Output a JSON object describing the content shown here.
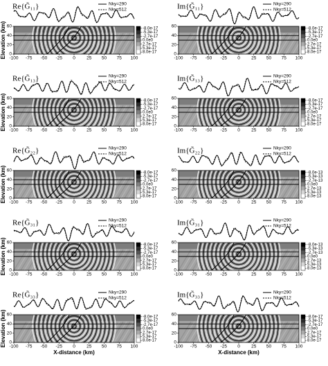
{
  "chart_data": [
    {
      "type": "wavefield",
      "title": "Re{G̃₁₁}",
      "series": [
        {
          "name": "Nky=290",
          "dash": "solid",
          "color": "#000000"
        },
        {
          "name": "Nky=512",
          "dash": "dashed",
          "color": "#000000"
        }
      ],
      "ylabel": "Elevation (km)",
      "xlim": [
        -100,
        100
      ],
      "xticks": [
        -100,
        -75,
        -50,
        -25,
        0,
        25,
        50,
        75,
        100
      ],
      "ylim": [
        0,
        60
      ],
      "yticks": [
        0,
        20,
        40,
        60
      ],
      "clim": [
        -8e-17,
        8e-17
      ],
      "cticks": [
        {
          "value": -8e-17,
          "label": "-8.0e-17"
        },
        {
          "value": -5.3e-17,
          "label": "-5.3e-17"
        },
        {
          "value": -2.7e-17,
          "label": "-2.7e-17"
        },
        {
          "value": 0,
          "label": "0.0e0"
        },
        {
          "value": 2.7e-17,
          "label": "2.7e-17"
        },
        {
          "value": 5.3e-17,
          "label": "5.3e-17"
        },
        {
          "value": 8e-17,
          "label": "8.0e-17"
        }
      ]
    },
    {
      "type": "wavefield",
      "title": "Im{G̃₁₁}",
      "series": [
        {
          "name": "Nky=290",
          "dash": "solid",
          "color": "#000000"
        },
        {
          "name": "Nky=512",
          "dash": "dashed",
          "color": "#000000"
        }
      ],
      "xlim": [
        -100,
        100
      ],
      "xticks": [
        -100,
        -75,
        -50,
        -25,
        0,
        25,
        50,
        75,
        100
      ],
      "ylim": [
        0,
        60
      ],
      "yticks": [
        0,
        20,
        40,
        60
      ],
      "clim": [
        -8e-17,
        8e-17
      ],
      "cticks": [
        {
          "value": -8e-17,
          "label": "-8.0e-17"
        },
        {
          "value": -5.3e-17,
          "label": "-5.3e-17"
        },
        {
          "value": -2.7e-17,
          "label": "-2.7e-17"
        },
        {
          "value": 0,
          "label": "0.0e0"
        },
        {
          "value": 2.7e-17,
          "label": "2.7e-17"
        },
        {
          "value": 5.3e-17,
          "label": "5.3e-17"
        },
        {
          "value": 8e-17,
          "label": "8.0e-17"
        }
      ]
    },
    {
      "type": "wavefield",
      "title": "Re{G̃₁₃}",
      "series": [
        {
          "name": "Nky=290",
          "dash": "solid",
          "color": "#000000"
        },
        {
          "name": "Nky=512",
          "dash": "dashed",
          "color": "#000000"
        }
      ],
      "ylabel": "Elevation (km)",
      "xlim": [
        -100,
        100
      ],
      "xticks": [
        -100,
        -75,
        -50,
        -25,
        0,
        25,
        50,
        75,
        100
      ],
      "ylim": [
        0,
        60
      ],
      "yticks": [
        0,
        20,
        40,
        60
      ],
      "clim": [
        -8e-17,
        8e-17
      ],
      "cticks": [
        {
          "value": -8e-17,
          "label": "-8.0e-17"
        },
        {
          "value": -5.3e-17,
          "label": "-5.3e-17"
        },
        {
          "value": -2.7e-17,
          "label": "-2.7e-17"
        },
        {
          "value": 0,
          "label": "0.0e0"
        },
        {
          "value": 2.7e-17,
          "label": "2.7e-17"
        },
        {
          "value": 5.3e-17,
          "label": "5.3e-17"
        },
        {
          "value": 8e-17,
          "label": "8.0e-17"
        }
      ]
    },
    {
      "type": "wavefield",
      "title": "Im{G̃₁₃}",
      "series": [
        {
          "name": "Nky=290",
          "dash": "solid",
          "color": "#000000"
        },
        {
          "name": "Nky=512",
          "dash": "dashed",
          "color": "#000000"
        }
      ],
      "xlim": [
        -100,
        100
      ],
      "xticks": [
        -100,
        -75,
        -50,
        -25,
        0,
        25,
        50,
        75,
        100
      ],
      "ylim": [
        0,
        60
      ],
      "yticks": [
        0,
        20,
        40,
        60
      ],
      "clim": [
        -8e-17,
        8e-17
      ],
      "cticks": [
        {
          "value": -8e-17,
          "label": "-8.0e-17"
        },
        {
          "value": -5.3e-17,
          "label": "-5.3e-17"
        },
        {
          "value": -2.7e-17,
          "label": "-2.7e-17"
        },
        {
          "value": 0,
          "label": "0.0e0"
        },
        {
          "value": 2.7e-17,
          "label": "2.7e-17"
        },
        {
          "value": 5.3e-17,
          "label": "5.3e-17"
        },
        {
          "value": 8e-17,
          "label": "8.0e-17"
        }
      ]
    },
    {
      "type": "wavefield",
      "title": "Re{G̃₂₂}",
      "series": [
        {
          "name": "Nky=290",
          "dash": "solid",
          "color": "#000000"
        },
        {
          "name": "Nky=512",
          "dash": "dashed",
          "color": "#000000"
        }
      ],
      "ylabel": "Elevation (km)",
      "xlim": [
        -100,
        100
      ],
      "xticks": [
        -100,
        -75,
        -50,
        -25,
        0,
        25,
        50,
        75,
        100
      ],
      "ylim": [
        0,
        60
      ],
      "yticks": [
        0,
        20,
        40,
        60
      ],
      "clim": [
        -8e-17,
        8e-17
      ],
      "cticks": [
        {
          "value": -8e-17,
          "label": "-8.0e-17"
        },
        {
          "value": -5.3e-17,
          "label": "-5.3e-17"
        },
        {
          "value": -2.7e-17,
          "label": "-2.7e-17"
        },
        {
          "value": 0,
          "label": "0.0e0"
        },
        {
          "value": 2.7e-17,
          "label": "2.7e-17"
        },
        {
          "value": 5.3e-17,
          "label": "5.3e-17"
        },
        {
          "value": 8e-17,
          "label": "8.0e-17"
        }
      ]
    },
    {
      "type": "wavefield",
      "title": "Im{G̃₂₂}",
      "series": [
        {
          "name": "Nky=290",
          "dash": "solid",
          "color": "#000000"
        },
        {
          "name": "Nky=512",
          "dash": "dashed",
          "color": "#000000"
        }
      ],
      "xlim": [
        -100,
        100
      ],
      "xticks": [
        -100,
        -75,
        -50,
        -25,
        0,
        25,
        50,
        75,
        100
      ],
      "ylim": [
        0,
        60
      ],
      "yticks": [
        0,
        20,
        40,
        60
      ],
      "clim": [
        -8e-13,
        8e-13
      ],
      "cticks": [
        {
          "value": -8e-13,
          "label": "-8.0e-13"
        },
        {
          "value": -5.3e-13,
          "label": "-5.3e-13"
        },
        {
          "value": -2.7e-13,
          "label": "-2.7e-13"
        },
        {
          "value": 0,
          "label": "0.0e0"
        },
        {
          "value": 2.7e-13,
          "label": "2.7e-13"
        },
        {
          "value": 5.3e-13,
          "label": "5.3e-13"
        },
        {
          "value": 8e-13,
          "label": "8.0e-13"
        }
      ]
    },
    {
      "type": "wavefield",
      "title": "Re{G̃₃₁}",
      "series": [
        {
          "name": "Nky=290",
          "dash": "solid",
          "color": "#000000"
        },
        {
          "name": "Nky=512",
          "dash": "dashed",
          "color": "#000000"
        }
      ],
      "ylabel": "Elevation (km)",
      "xlim": [
        -100,
        100
      ],
      "xticks": [
        -100,
        -75,
        -50,
        -25,
        0,
        25,
        50,
        75,
        100
      ],
      "ylim": [
        0,
        60
      ],
      "yticks": [
        0,
        20,
        40,
        60
      ],
      "clim": [
        -8e-17,
        8e-17
      ],
      "cticks": [
        {
          "value": -8e-17,
          "label": "-8.0e-17"
        },
        {
          "value": -5.3e-17,
          "label": "-5.3e-17"
        },
        {
          "value": -2.7e-17,
          "label": "-2.7e-17"
        },
        {
          "value": 0,
          "label": "0.0e0"
        },
        {
          "value": 2.7e-17,
          "label": "2.7e-17"
        },
        {
          "value": 5.3e-17,
          "label": "5.3e-17"
        },
        {
          "value": 8e-17,
          "label": "8.0e-17"
        }
      ]
    },
    {
      "type": "wavefield",
      "title": "Im{G̃₃₁}",
      "series": [
        {
          "name": "Nky=290",
          "dash": "solid",
          "color": "#000000"
        },
        {
          "name": "Nky=512",
          "dash": "dashed",
          "color": "#000000"
        }
      ],
      "xlim": [
        -100,
        100
      ],
      "xticks": [
        -100,
        -75,
        -50,
        -25,
        0,
        25,
        50,
        75,
        100
      ],
      "ylim": [
        0,
        60
      ],
      "yticks": [
        0,
        20,
        40,
        60
      ],
      "clim": [
        -8e-13,
        8e-13
      ],
      "cticks": [
        {
          "value": -8e-13,
          "label": "-8.0e-13"
        },
        {
          "value": -5.3e-13,
          "label": "-5.3e-13"
        },
        {
          "value": -2.7e-13,
          "label": "-2.7e-13"
        },
        {
          "value": 0,
          "label": "0.0e0"
        },
        {
          "value": 2.7e-13,
          "label": "2.7e-13"
        },
        {
          "value": 5.3e-13,
          "label": "5.3e-13"
        },
        {
          "value": 8e-13,
          "label": "8.0e-13"
        }
      ]
    },
    {
      "type": "wavefield",
      "title": "Re{G̃₃₃}",
      "series": [
        {
          "name": "Nky=290",
          "dash": "solid",
          "color": "#000000"
        },
        {
          "name": "Nky=512",
          "dash": "dashed",
          "color": "#000000"
        }
      ],
      "ylabel": "Elevation (km)",
      "xlabel": "X-distance (km)",
      "xlim": [
        -100,
        100
      ],
      "xticks": [
        -100,
        -75,
        -50,
        -25,
        0,
        25,
        50,
        75,
        100
      ],
      "ylim": [
        0,
        60
      ],
      "yticks": [
        0,
        20,
        40,
        60
      ],
      "clim": [
        -8e-17,
        8e-17
      ],
      "cticks": [
        {
          "value": -8e-17,
          "label": "-8.0e-17"
        },
        {
          "value": -5.3e-17,
          "label": "-5.3e-17"
        },
        {
          "value": -2.7e-17,
          "label": "-2.7e-17"
        },
        {
          "value": 0,
          "label": "0.0e0"
        },
        {
          "value": 2.7e-17,
          "label": "2.7e-17"
        },
        {
          "value": 5.3e-17,
          "label": "5.3e-17"
        },
        {
          "value": 8e-17,
          "label": "8.0e-17"
        }
      ]
    },
    {
      "type": "wavefield",
      "title": "Im{G̃₃₃}",
      "series": [
        {
          "name": "Nky=290",
          "dash": "solid",
          "color": "#000000"
        },
        {
          "name": "Nky=512",
          "dash": "dashed",
          "color": "#000000"
        }
      ],
      "xlabel": "X-distance (km)",
      "xlim": [
        -100,
        100
      ],
      "xticks": [
        -100,
        -75,
        -50,
        -25,
        0,
        25,
        50,
        75,
        100
      ],
      "ylim": [
        0,
        60
      ],
      "yticks": [
        0,
        20,
        40,
        60
      ],
      "clim": [
        -8e-17,
        8e-17
      ],
      "cticks": [
        {
          "value": -8e-17,
          "label": "-8.0e-17"
        },
        {
          "value": -5.3e-17,
          "label": "-5.3e-17"
        },
        {
          "value": -2.7e-17,
          "label": "-2.7e-17"
        },
        {
          "value": 0,
          "label": "0.0e0"
        },
        {
          "value": 2.7e-17,
          "label": "2.7e-17"
        },
        {
          "value": 5.3e-17,
          "label": "5.3e-17"
        },
        {
          "value": 8e-17,
          "label": "8.0e-17"
        }
      ]
    }
  ]
}
